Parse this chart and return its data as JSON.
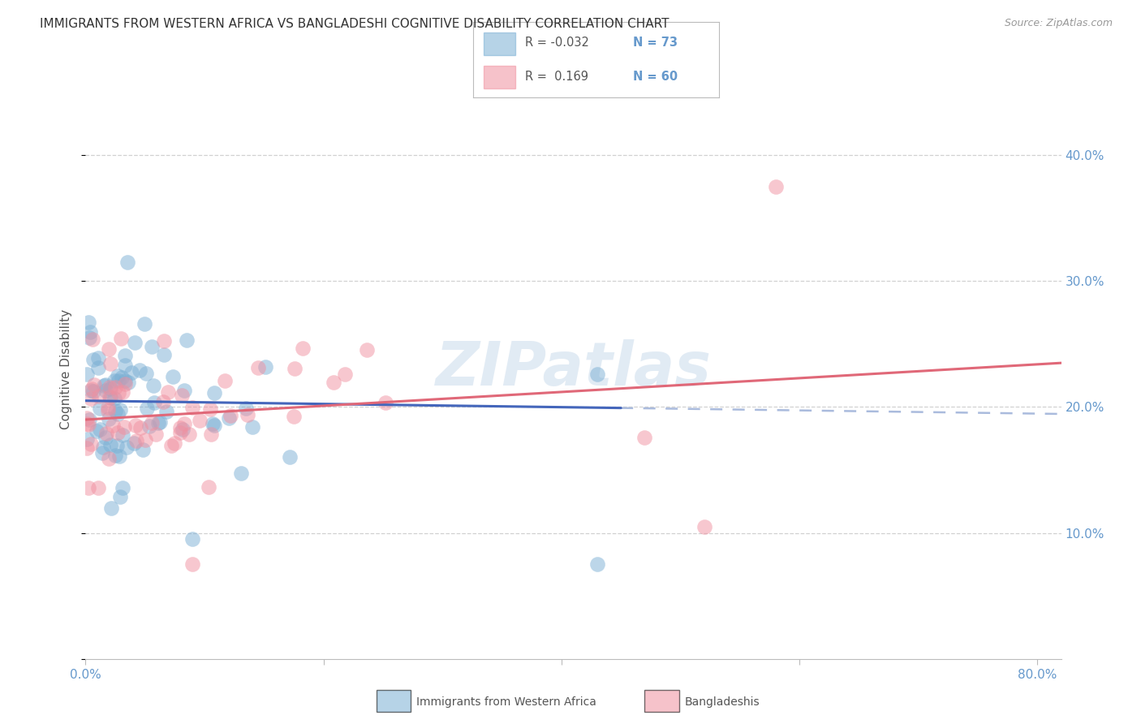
{
  "title": "IMMIGRANTS FROM WESTERN AFRICA VS BANGLADESHI COGNITIVE DISABILITY CORRELATION CHART",
  "source": "Source: ZipAtlas.com",
  "ylabel": "Cognitive Disability",
  "xlim": [
    0.0,
    0.82
  ],
  "ylim": [
    0.0,
    0.46
  ],
  "x_ticks": [
    0.0,
    0.2,
    0.4,
    0.6,
    0.8
  ],
  "x_tick_labels": [
    "0.0%",
    "",
    "",
    "",
    "80.0%"
  ],
  "y_ticks_right": [
    0.1,
    0.2,
    0.3,
    0.4
  ],
  "y_tick_labels_right": [
    "10.0%",
    "20.0%",
    "30.0%",
    "40.0%"
  ],
  "series1_color": "#7bafd4",
  "series2_color": "#f090a0",
  "series1_line_color": "#4466bb",
  "series2_line_color": "#e06878",
  "series1_dashed_color": "#aabbdd",
  "watermark": "ZIPatlas",
  "R1": -0.032,
  "N1": 73,
  "R2": 0.169,
  "N2": 60,
  "background_color": "#ffffff",
  "grid_color": "#cccccc",
  "title_color": "#333333",
  "right_axis_color": "#6699cc",
  "legend_label1": "Immigrants from Western Africa",
  "legend_label2": "Bangladeshis",
  "legend_R1": "R = -0.032",
  "legend_N1": "N = 73",
  "legend_R2": "R =  0.169",
  "legend_N2": "N = 60"
}
